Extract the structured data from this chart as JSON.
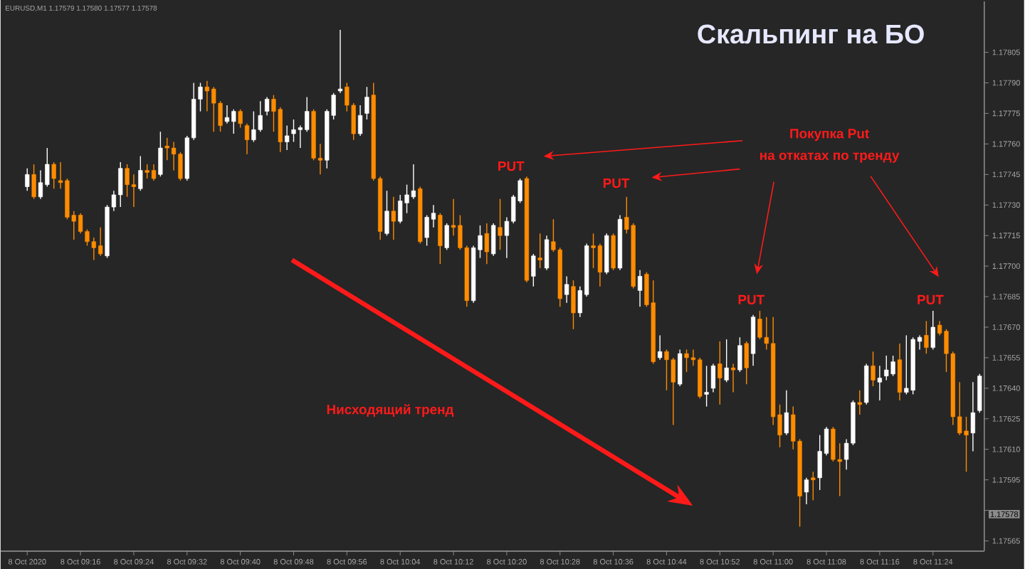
{
  "chart_data": {
    "type": "candlestick",
    "title": "Скальпинг на БО",
    "annotations": [
      "EURUSD,M1 1.17579 1.17580 1.17577 1.17578",
      "PUT",
      "PUT",
      "PUT",
      "PUT",
      "Покупка Put",
      "на откатах по тренду",
      "Нисходящий тренд",
      "1.17578"
    ],
    "categories": [
      "8 Oct 2020",
      null,
      null,
      null,
      null,
      null,
      null,
      null,
      "8 Oct 09:16",
      null,
      null,
      null,
      null,
      null,
      null,
      null,
      "8 Oct 09:24",
      null,
      null,
      null,
      null,
      null,
      null,
      null,
      "8 Oct 09:32",
      null,
      null,
      null,
      null,
      null,
      null,
      null,
      "8 Oct 09:40",
      null,
      null,
      null,
      null,
      null,
      null,
      null,
      "8 Oct 09:48",
      null,
      null,
      null,
      null,
      null,
      null,
      null,
      "8 Oct 09:56",
      null,
      null,
      null,
      null,
      null,
      null,
      null,
      "8 Oct 10:04",
      null,
      null,
      null,
      null,
      null,
      null,
      null,
      "8 Oct 10:12",
      null,
      null,
      null,
      null,
      null,
      null,
      null,
      "8 Oct 10:20",
      null,
      null,
      null,
      null,
      null,
      null,
      null,
      "8 Oct 10:28",
      null,
      null,
      null,
      null,
      null,
      null,
      null,
      "8 Oct 10:36",
      null,
      null,
      null,
      null,
      null,
      null,
      null,
      "8 Oct 10:44",
      null,
      null,
      null,
      null,
      null,
      null,
      null,
      "8 Oct 10:52",
      null,
      null,
      null,
      null,
      null,
      null,
      null,
      "8 Oct 11:00",
      null,
      null,
      null,
      null,
      null,
      null,
      null,
      "8 Oct 11:08",
      null,
      null,
      null,
      null,
      null,
      null,
      null,
      "8 Oct 11:16",
      null,
      null,
      null,
      null,
      null,
      null,
      null,
      "8 Oct 11:24",
      null,
      null,
      null,
      null,
      null,
      null,
      null
    ],
    "ohlc": [
      [
        1.17739,
        1.17748,
        1.17737,
        1.17745
      ],
      [
        1.17745,
        1.1775,
        1.17733,
        1.17734
      ],
      [
        1.17734,
        1.17747,
        1.17733,
        1.17741
      ],
      [
        1.1774,
        1.17758,
        1.17739,
        1.1775
      ],
      [
        1.1775,
        1.17751,
        1.17738,
        1.17743
      ],
      [
        1.17742,
        1.17751,
        1.17738,
        1.17741
      ],
      [
        1.17742,
        1.17743,
        1.17723,
        1.17724
      ],
      [
        1.17725,
        1.17727,
        1.17713,
        1.17722
      ],
      [
        1.17725,
        1.17726,
        1.17716,
        1.17717
      ],
      [
        1.17717,
        1.17718,
        1.1771,
        1.17712
      ],
      [
        1.17712,
        1.17714,
        1.17703,
        1.17709
      ],
      [
        1.1771,
        1.17719,
        1.17705,
        1.17706
      ],
      [
        1.17705,
        1.1773,
        1.17704,
        1.17729
      ],
      [
        1.17729,
        1.17737,
        1.17727,
        1.17735
      ],
      [
        1.17735,
        1.17751,
        1.17729,
        1.17748
      ],
      [
        1.17748,
        1.1775,
        1.17734,
        1.1774
      ],
      [
        1.1774,
        1.17745,
        1.17729,
        1.17739
      ],
      [
        1.17738,
        1.17754,
        1.17737,
        1.17747
      ],
      [
        1.17747,
        1.1775,
        1.17743,
        1.17746
      ],
      [
        1.17747,
        1.1775,
        1.17742,
        1.17743
      ],
      [
        1.17745,
        1.17766,
        1.17744,
        1.17758
      ],
      [
        1.17759,
        1.17763,
        1.17752,
        1.17758
      ],
      [
        1.17758,
        1.17761,
        1.17747,
        1.17755
      ],
      [
        1.17755,
        1.17756,
        1.17742,
        1.17743
      ],
      [
        1.17743,
        1.17764,
        1.17742,
        1.17763
      ],
      [
        1.17763,
        1.1779,
        1.17762,
        1.17782
      ],
      [
        1.17782,
        1.1779,
        1.17776,
        1.17788
      ],
      [
        1.17788,
        1.17791,
        1.17776,
        1.17786
      ],
      [
        1.17787,
        1.17788,
        1.17766,
        1.1778
      ],
      [
        1.1778,
        1.17781,
        1.17766,
        1.17769
      ],
      [
        1.17771,
        1.17779,
        1.1777,
        1.17773
      ],
      [
        1.17771,
        1.17777,
        1.17765,
        1.17776
      ],
      [
        1.17776,
        1.17777,
        1.17768,
        1.1777
      ],
      [
        1.17769,
        1.1777,
        1.17755,
        1.17762
      ],
      [
        1.17762,
        1.17776,
        1.17761,
        1.17767
      ],
      [
        1.17767,
        1.17781,
        1.17766,
        1.17774
      ],
      [
        1.17776,
        1.17783,
        1.17774,
        1.17782
      ],
      [
        1.17782,
        1.17784,
        1.17766,
        1.17776
      ],
      [
        1.17777,
        1.17778,
        1.17756,
        1.17761
      ],
      [
        1.17761,
        1.17769,
        1.17757,
        1.17764
      ],
      [
        1.17765,
        1.17772,
        1.17761,
        1.17767
      ],
      [
        1.17767,
        1.17769,
        1.17758,
        1.17768
      ],
      [
        1.17767,
        1.17783,
        1.17766,
        1.17776
      ],
      [
        1.17776,
        1.17777,
        1.17752,
        1.17753
      ],
      [
        1.17753,
        1.1776,
        1.17745,
        1.17752
      ],
      [
        1.17752,
        1.17777,
        1.17748,
        1.17776
      ],
      [
        1.17774,
        1.17785,
        1.17772,
        1.17784
      ],
      [
        1.17786,
        1.17816,
        1.17785,
        1.17787
      ],
      [
        1.17788,
        1.1779,
        1.17776,
        1.17779
      ],
      [
        1.17779,
        1.1778,
        1.17762,
        1.17765
      ],
      [
        1.17765,
        1.17779,
        1.17764,
        1.17774
      ],
      [
        1.17775,
        1.17788,
        1.17772,
        1.17783
      ],
      [
        1.17784,
        1.1779,
        1.17742,
        1.17743
      ],
      [
        1.17743,
        1.17744,
        1.17713,
        1.17717
      ],
      [
        1.17716,
        1.17737,
        1.17715,
        1.17727
      ],
      [
        1.17727,
        1.17734,
        1.17713,
        1.17722
      ],
      [
        1.17722,
        1.17735,
        1.17721,
        1.17732
      ],
      [
        1.17731,
        1.1774,
        1.17726,
        1.17735
      ],
      [
        1.17734,
        1.1775,
        1.17733,
        1.17737
      ],
      [
        1.17738,
        1.17739,
        1.17711,
        1.17712
      ],
      [
        1.17714,
        1.17725,
        1.1771,
        1.17724
      ],
      [
        1.17723,
        1.1773,
        1.17719,
        1.17726
      ],
      [
        1.17725,
        1.17726,
        1.17701,
        1.1771
      ],
      [
        1.17709,
        1.17721,
        1.17708,
        1.1772
      ],
      [
        1.1772,
        1.17733,
        1.17715,
        1.17719
      ],
      [
        1.1772,
        1.17725,
        1.17708,
        1.17709
      ],
      [
        1.17709,
        1.1771,
        1.1768,
        1.17683
      ],
      [
        1.17683,
        1.1771,
        1.17682,
        1.17709
      ],
      [
        1.17708,
        1.1772,
        1.17704,
        1.17715
      ],
      [
        1.17716,
        1.17721,
        1.17701,
        1.17707
      ],
      [
        1.17706,
        1.17721,
        1.17705,
        1.1772
      ],
      [
        1.17719,
        1.17733,
        1.17708,
        1.17715
      ],
      [
        1.17715,
        1.17724,
        1.17704,
        1.17722
      ],
      [
        1.17722,
        1.17735,
        1.17721,
        1.17734
      ],
      [
        1.17732,
        1.17743,
        1.17731,
        1.17742
      ],
      [
        1.17743,
        1.17744,
        1.17692,
        1.17693
      ],
      [
        1.17695,
        1.17706,
        1.1769,
        1.17705
      ],
      [
        1.17704,
        1.17716,
        1.17699,
        1.17703
      ],
      [
        1.17699,
        1.17715,
        1.17698,
        1.17713
      ],
      [
        1.17712,
        1.17723,
        1.17707,
        1.17708
      ],
      [
        1.17708,
        1.17709,
        1.1768,
        1.17684
      ],
      [
        1.17686,
        1.17695,
        1.17682,
        1.17691
      ],
      [
        1.1769,
        1.17693,
        1.17669,
        1.17677
      ],
      [
        1.17677,
        1.1769,
        1.17675,
        1.17688
      ],
      [
        1.17686,
        1.17711,
        1.17685,
        1.1771
      ],
      [
        1.1771,
        1.17716,
        1.17699,
        1.17709
      ],
      [
        1.1771,
        1.17711,
        1.1769,
        1.17697
      ],
      [
        1.17697,
        1.17716,
        1.17696,
        1.17715
      ],
      [
        1.17715,
        1.17716,
        1.17698,
        1.17699
      ],
      [
        1.17699,
        1.17725,
        1.17698,
        1.17723
      ],
      [
        1.17724,
        1.17734,
        1.17716,
        1.17718
      ],
      [
        1.1772,
        1.17721,
        1.17689,
        1.1769
      ],
      [
        1.17688,
        1.17698,
        1.1768,
        1.17695
      ],
      [
        1.17696,
        1.17697,
        1.1768,
        1.17681
      ],
      [
        1.17682,
        1.17693,
        1.17652,
        1.17653
      ],
      [
        1.17655,
        1.17666,
        1.17654,
        1.17658
      ],
      [
        1.17658,
        1.17659,
        1.17639,
        1.17654
      ],
      [
        1.17654,
        1.17655,
        1.17622,
        1.17643
      ],
      [
        1.17642,
        1.17659,
        1.17641,
        1.17657
      ],
      [
        1.17657,
        1.17659,
        1.17648,
        1.17655
      ],
      [
        1.17655,
        1.17659,
        1.17651,
        1.17654
      ],
      [
        1.17654,
        1.17655,
        1.17635,
        1.17636
      ],
      [
        1.17637,
        1.17651,
        1.17631,
        1.17638
      ],
      [
        1.1764,
        1.17652,
        1.17638,
        1.17651
      ],
      [
        1.17652,
        1.17663,
        1.17632,
        1.17645
      ],
      [
        1.17644,
        1.17664,
        1.17643,
        1.1765
      ],
      [
        1.1765,
        1.17652,
        1.17638,
        1.17649
      ],
      [
        1.17649,
        1.17665,
        1.17648,
        1.17661
      ],
      [
        1.17662,
        1.17663,
        1.17642,
        1.1765
      ],
      [
        1.17657,
        1.17676,
        1.17651,
        1.17675
      ],
      [
        1.17674,
        1.17678,
        1.17664,
        1.17665
      ],
      [
        1.17665,
        1.17675,
        1.17659,
        1.17662
      ],
      [
        1.17662,
        1.17675,
        1.17622,
        1.17626
      ],
      [
        1.17627,
        1.17632,
        1.17611,
        1.17617
      ],
      [
        1.17618,
        1.17639,
        1.17617,
        1.17628
      ],
      [
        1.17627,
        1.17631,
        1.1761,
        1.17614
      ],
      [
        1.17614,
        1.17615,
        1.17572,
        1.17587
      ],
      [
        1.17589,
        1.17596,
        1.17583,
        1.17595
      ],
      [
        1.17596,
        1.17599,
        1.17585,
        1.17595
      ],
      [
        1.17596,
        1.17617,
        1.1759,
        1.17609
      ],
      [
        1.17608,
        1.17621,
        1.17607,
        1.1762
      ],
      [
        1.1762,
        1.17621,
        1.17604,
        1.17605
      ],
      [
        1.17605,
        1.17613,
        1.17587,
        1.17604
      ],
      [
        1.17605,
        1.17615,
        1.176,
        1.17613
      ],
      [
        1.17613,
        1.17634,
        1.17612,
        1.17633
      ],
      [
        1.17633,
        1.17639,
        1.17627,
        1.17632
      ],
      [
        1.17633,
        1.17652,
        1.17632,
        1.17651
      ],
      [
        1.17651,
        1.17658,
        1.17641,
        1.17644
      ],
      [
        1.17643,
        1.17651,
        1.17634,
        1.17645
      ],
      [
        1.17646,
        1.17656,
        1.17644,
        1.17649
      ],
      [
        1.17647,
        1.17656,
        1.17646,
        1.17653
      ],
      [
        1.17654,
        1.17662,
        1.17634,
        1.17638
      ],
      [
        1.17638,
        1.17666,
        1.17637,
        1.1764
      ],
      [
        1.17639,
        1.17665,
        1.17637,
        1.17664
      ],
      [
        1.17663,
        1.17666,
        1.17659,
        1.17665
      ],
      [
        1.17666,
        1.17673,
        1.17657,
        1.1766
      ],
      [
        1.1766,
        1.17678,
        1.17659,
        1.1767
      ],
      [
        1.17671,
        1.17673,
        1.17666,
        1.17667
      ],
      [
        1.17668,
        1.17669,
        1.17648,
        1.17657
      ],
      [
        1.17657,
        1.17658,
        1.17622,
        1.17626
      ],
      [
        1.17626,
        1.17643,
        1.17617,
        1.17618
      ],
      [
        1.17619,
        1.17626,
        1.17599,
        1.17617
      ],
      [
        1.17618,
        1.17643,
        1.17609,
        1.17628
      ],
      [
        1.17629,
        1.17647,
        1.17628,
        1.17646
      ]
    ],
    "ylim": [
      1.1756,
      1.1783
    ],
    "yticks": [
      {
        "value": 1.17565,
        "label": "1.17565"
      },
      {
        "value": 1.1758,
        "label": null
      },
      {
        "value": 1.17595,
        "label": "1.17595"
      },
      {
        "value": 1.1761,
        "label": "1.17610"
      },
      {
        "value": 1.17625,
        "label": "1.17625"
      },
      {
        "value": 1.1764,
        "label": "1.17640"
      },
      {
        "value": 1.17655,
        "label": "1.17655"
      },
      {
        "value": 1.1767,
        "label": "1.17670"
      },
      {
        "value": 1.17685,
        "label": "1.17685"
      },
      {
        "value": 1.177,
        "label": "1.17700"
      },
      {
        "value": 1.17715,
        "label": "1.17715"
      },
      {
        "value": 1.1773,
        "label": "1.17730"
      },
      {
        "value": 1.17745,
        "label": "1.17745"
      },
      {
        "value": 1.1776,
        "label": "1.17760"
      },
      {
        "value": 1.17775,
        "label": "1.17775"
      },
      {
        "value": 1.1779,
        "label": "1.17790"
      },
      {
        "value": 1.17805,
        "label": "1.17805"
      }
    ]
  }
}
